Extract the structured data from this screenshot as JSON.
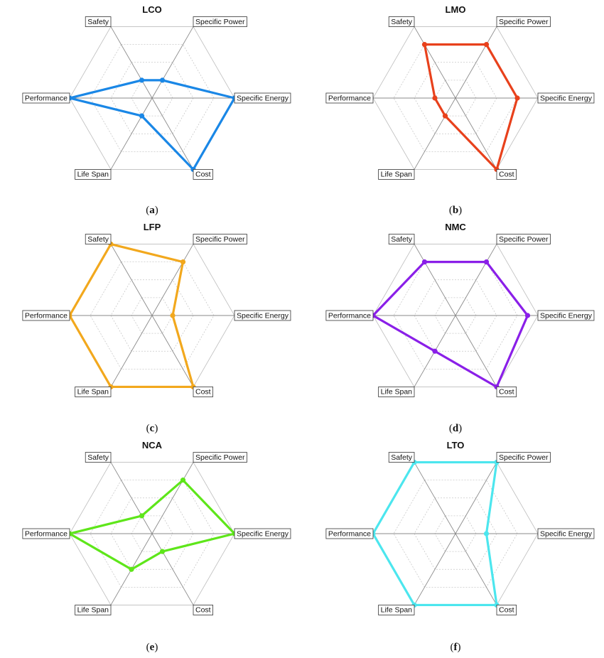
{
  "chart_data": [
    {
      "type": "radar",
      "title": "LCO",
      "caption": "a",
      "axes": [
        "Safety",
        "Specific Power",
        "Specific Energy",
        "Cost",
        "Life Span",
        "Performance"
      ],
      "values": [
        1,
        1,
        4,
        4,
        1,
        4
      ],
      "range": [
        0,
        4
      ],
      "grid_levels": 4,
      "color": "#1a87e6"
    },
    {
      "type": "radar",
      "title": "LMO",
      "caption": "b",
      "axes": [
        "Safety",
        "Specific Power",
        "Specific Energy",
        "Cost",
        "Life Span",
        "Performance"
      ],
      "values": [
        3,
        3,
        3,
        4,
        1,
        1
      ],
      "range": [
        0,
        4
      ],
      "grid_levels": 4,
      "color": "#e8411c"
    },
    {
      "type": "radar",
      "title": "LFP",
      "caption": "c",
      "axes": [
        "Safety",
        "Specific Power",
        "Specific Energy",
        "Cost",
        "Life Span",
        "Performance"
      ],
      "values": [
        4,
        3,
        1,
        4,
        4,
        4
      ],
      "range": [
        0,
        4
      ],
      "grid_levels": 4,
      "color": "#f2a81d"
    },
    {
      "type": "radar",
      "title": "NMC",
      "caption": "d",
      "axes": [
        "Safety",
        "Specific Power",
        "Specific Energy",
        "Cost",
        "Life Span",
        "Performance"
      ],
      "values": [
        3,
        3,
        3.5,
        4,
        2,
        4
      ],
      "range": [
        0,
        4
      ],
      "grid_levels": 4,
      "color": "#8a1fe8"
    },
    {
      "type": "radar",
      "title": "NCA",
      "caption": "e",
      "axes": [
        "Safety",
        "Specific Power",
        "Specific Energy",
        "Cost",
        "Life Span",
        "Performance"
      ],
      "values": [
        1,
        3,
        4,
        1,
        2,
        4
      ],
      "range": [
        0,
        4
      ],
      "grid_levels": 4,
      "color": "#5ee61a"
    },
    {
      "type": "radar",
      "title": "LTO",
      "caption": "f",
      "axes": [
        "Safety",
        "Specific Power",
        "Specific Energy",
        "Cost",
        "Life Span",
        "Performance"
      ],
      "values": [
        4,
        4,
        1.5,
        4,
        4,
        4
      ],
      "range": [
        0,
        4
      ],
      "grid_levels": 4,
      "color": "#4ce6ee"
    }
  ]
}
